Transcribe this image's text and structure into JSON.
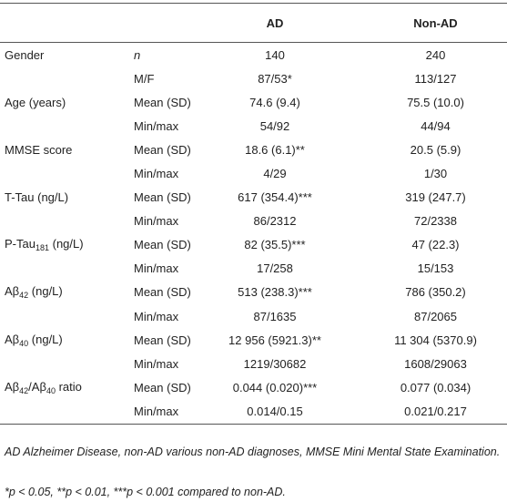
{
  "table": {
    "header": [
      "AD",
      "Non-AD"
    ],
    "rows": [
      {
        "label": [
          "Gender"
        ],
        "stat": "n",
        "values": [
          "140",
          "240"
        ]
      },
      {
        "stat": "M/F",
        "values": [
          "87/53*",
          "113/127"
        ]
      },
      {
        "label": [
          "Age (years)"
        ],
        "stat": "Mean (SD)",
        "values": [
          "74.6 (9.4)",
          "75.5 (10.0)"
        ]
      },
      {
        "stat": "Min/max",
        "values": [
          "54/92",
          "44/94"
        ]
      },
      {
        "label": [
          "MMSE score"
        ],
        "stat": "Mean (SD)",
        "values": [
          "18.6 (6.1)**",
          "20.5 (5.9)"
        ]
      },
      {
        "stat": "Min/max",
        "values": [
          "4/29",
          "1/30"
        ]
      },
      {
        "label": [
          "T-Tau (ng/L)"
        ],
        "stat": "Mean (SD)",
        "values": [
          "617 (354.4)***",
          "319 (247.7)"
        ]
      },
      {
        "stat": "Min/max",
        "values": [
          "86/2312",
          "72/2338"
        ]
      },
      {
        "label": [
          "P-Tau",
          "181",
          " (ng/L)"
        ],
        "stat": "Mean (SD)",
        "values": [
          "82 (35.5)***",
          "47 (22.3)"
        ]
      },
      {
        "stat": "Min/max",
        "values": [
          "17/258",
          "15/153"
        ]
      },
      {
        "label": [
          "Aβ",
          "42",
          " (ng/L)"
        ],
        "stat": "Mean (SD)",
        "values": [
          "513 (238.3)***",
          "786 (350.2)"
        ]
      },
      {
        "stat": "Min/max",
        "values": [
          "87/1635",
          "87/2065"
        ]
      },
      {
        "label": [
          "Aβ",
          "40",
          " (ng/L)"
        ],
        "stat": "Mean (SD)",
        "values": [
          "12 956 (5921.3)**",
          "11 304 (5370.9)"
        ]
      },
      {
        "stat": "Min/max",
        "values": [
          "1219/30682",
          "1608/29063"
        ]
      },
      {
        "label": [
          "Aβ",
          "42",
          "/Aβ",
          "40",
          " ratio"
        ],
        "stat": "Mean (SD)",
        "values": [
          "0.044 (0.020)***",
          "0.077 (0.034)"
        ]
      },
      {
        "stat": "Min/max",
        "values": [
          "0.014/0.15",
          "0.021/0.217"
        ]
      }
    ],
    "footnotes": [
      "AD Alzheimer Disease, non-AD various non-AD diagnoses, MMSE Mini Mental State Examination.",
      "*p < 0.05, **p < 0.01, ***p < 0.001 compared to non-AD."
    ]
  }
}
